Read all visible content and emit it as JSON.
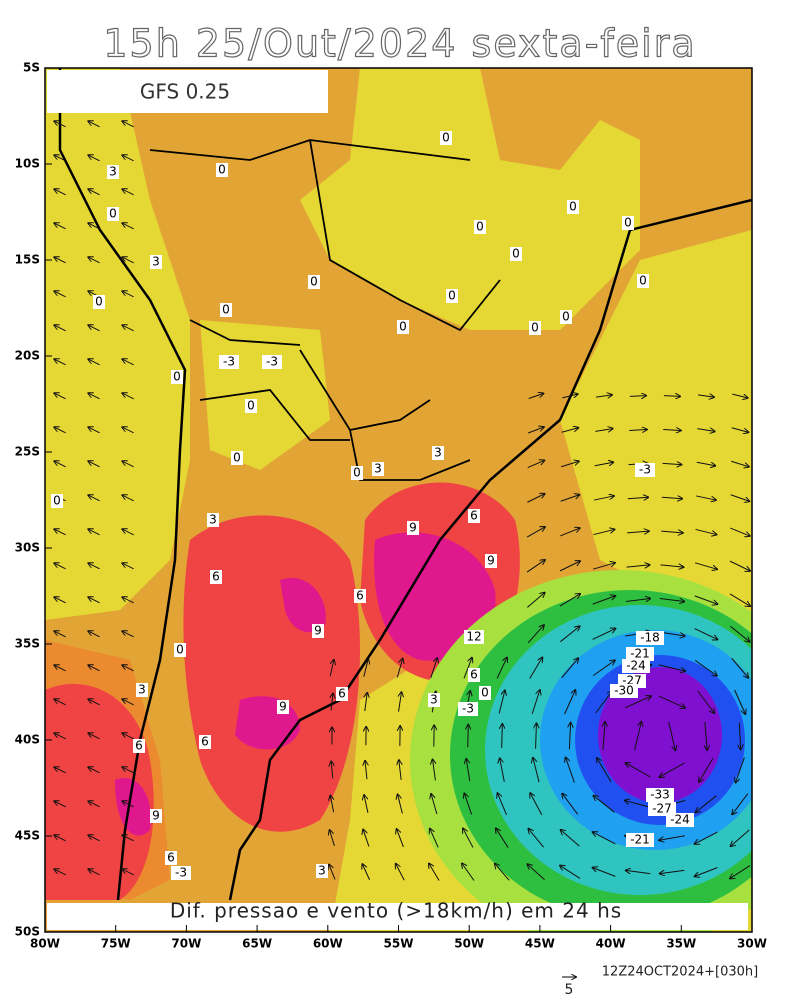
{
  "title": "15h 25/Out/2024 sexta-feira",
  "model": "GFS 0.25",
  "caption": "Dif. pressao e vento (>18km/h) em 24 hs",
  "lat_labels": [
    "5S",
    "10S",
    "15S",
    "20S",
    "25S",
    "30S",
    "35S",
    "40S",
    "45S",
    "50S"
  ],
  "lon_labels": [
    "80W",
    "75W",
    "70W",
    "65W",
    "60W",
    "55W",
    "50W",
    "45W",
    "40W",
    "35W",
    "30W"
  ],
  "contour_labels": [
    "3",
    "0",
    "3",
    "0",
    "0",
    "0",
    "0",
    "0",
    "0",
    "0",
    "0",
    "0",
    "0",
    "0",
    "0",
    "0",
    "0",
    "-3",
    "-3",
    "0",
    "0",
    "0",
    "0",
    "3",
    "3",
    "-3",
    "0",
    "3",
    "9",
    "6",
    "9",
    "6",
    "6",
    "9",
    "12",
    "0",
    "-18",
    "-21",
    "-24",
    "-27",
    "-30",
    "6",
    "0",
    "3",
    "-3",
    "3",
    "6",
    "9",
    "6",
    "6",
    "-33",
    "-27",
    "-24",
    "-21",
    "9",
    "6",
    "-3",
    "3"
  ],
  "timestamp": "12Z24OCT2024+[030h]",
  "vector_scale": "5"
}
